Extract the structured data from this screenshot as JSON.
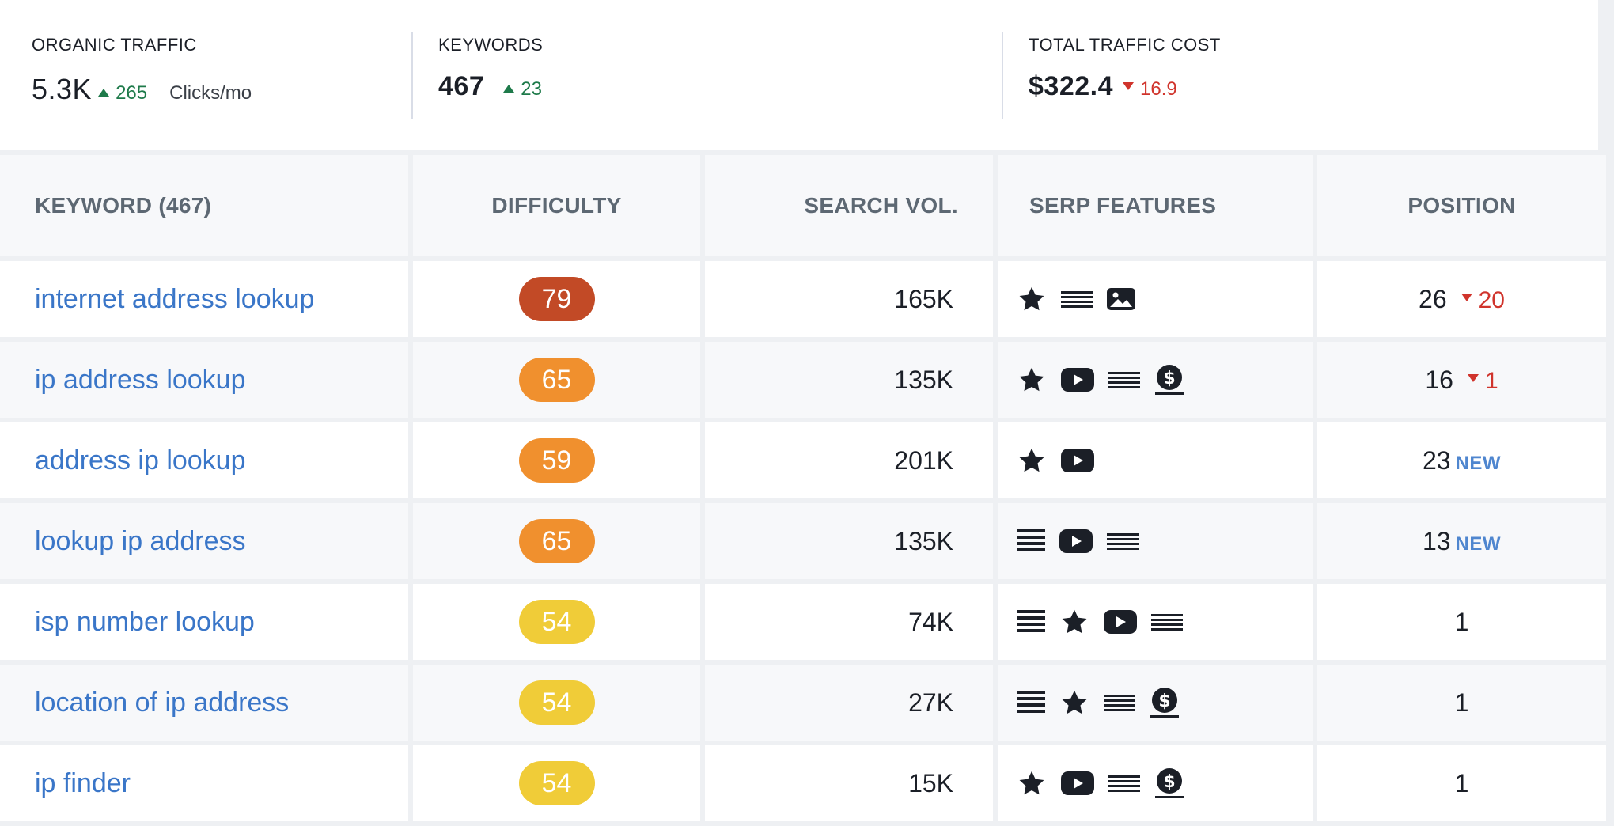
{
  "metrics": {
    "organic_traffic": {
      "label": "ORGANIC TRAFFIC",
      "value": "5.3K",
      "delta": "265",
      "direction": "up",
      "unit": "Clicks/mo"
    },
    "keywords": {
      "label": "KEYWORDS",
      "value": "467",
      "delta": "23",
      "direction": "up"
    },
    "traffic_cost": {
      "label": "TOTAL TRAFFIC COST",
      "value": "$322.4",
      "delta": "16.9",
      "direction": "down"
    }
  },
  "colors": {
    "link": "#3a76c8",
    "up": "#1e7a4a",
    "down": "#d0342c",
    "new": "#4f86cf",
    "difficulty_very_hard": "#c24a26",
    "difficulty_hard": "#f0902e",
    "difficulty_medium": "#f0cc38"
  },
  "table": {
    "headers": {
      "keyword": "KEYWORD (467)",
      "difficulty": "DIFFICULTY",
      "search_vol": "SEARCH VOL.",
      "serp": "SERP FEATURES",
      "position": "POSITION"
    },
    "rows": [
      {
        "keyword": "internet address lookup",
        "difficulty": "79",
        "difficulty_color": "#c24a26",
        "search_vol": "165K",
        "serp": [
          "star-icon",
          "snippet-lines-icon",
          "image-icon"
        ],
        "position": "26",
        "change": "20",
        "change_direction": "down",
        "is_new": false
      },
      {
        "keyword": "ip address lookup",
        "difficulty": "65",
        "difficulty_color": "#f0902e",
        "search_vol": "135K",
        "serp": [
          "star-icon",
          "video-icon",
          "snippet-lines-icon",
          "dollar-icon"
        ],
        "position": "16",
        "change": "1",
        "change_direction": "down",
        "is_new": false
      },
      {
        "keyword": "address ip lookup",
        "difficulty": "59",
        "difficulty_color": "#f0902e",
        "search_vol": "201K",
        "serp": [
          "star-icon",
          "video-icon"
        ],
        "position": "23",
        "new_label": "NEW",
        "is_new": true
      },
      {
        "keyword": "lookup ip address",
        "difficulty": "65",
        "difficulty_color": "#f0902e",
        "search_vol": "135K",
        "serp": [
          "list-icon",
          "video-icon",
          "snippet-lines-icon"
        ],
        "position": "13",
        "new_label": "NEW",
        "is_new": true
      },
      {
        "keyword": "isp number lookup",
        "difficulty": "54",
        "difficulty_color": "#f0cc38",
        "search_vol": "74K",
        "serp": [
          "list-icon",
          "star-icon",
          "video-icon",
          "snippet-lines-icon"
        ],
        "position": "1",
        "is_new": false
      },
      {
        "keyword": "location of ip address",
        "difficulty": "54",
        "difficulty_color": "#f0cc38",
        "search_vol": "27K",
        "serp": [
          "list-icon",
          "star-icon",
          "snippet-lines-icon",
          "dollar-icon"
        ],
        "position": "1",
        "is_new": false
      },
      {
        "keyword": "ip finder",
        "difficulty": "54",
        "difficulty_color": "#f0cc38",
        "search_vol": "15K",
        "serp": [
          "star-icon",
          "video-icon",
          "snippet-lines-icon",
          "dollar-icon"
        ],
        "position": "1",
        "is_new": false
      }
    ]
  }
}
